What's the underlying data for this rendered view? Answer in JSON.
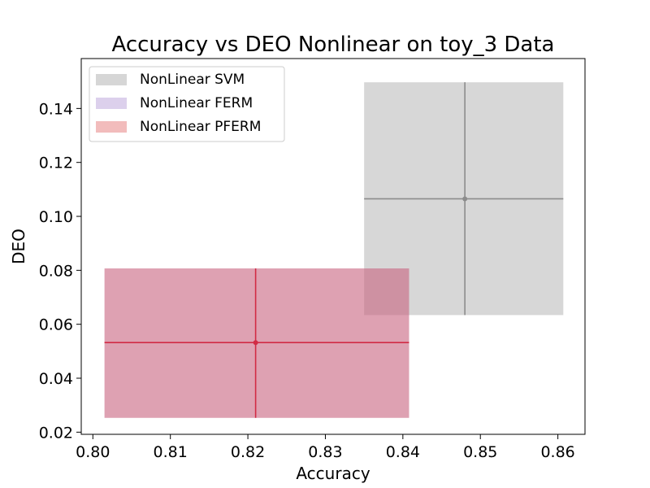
{
  "chart_data": {
    "type": "scatter",
    "title": "Accuracy vs DEO Nonlinear on toy_3 Data",
    "xlabel": "Accuracy",
    "ylabel": "DEO",
    "xlim": [
      0.7985,
      0.8635
    ],
    "ylim": [
      0.0192,
      0.1585
    ],
    "xticks": [
      "0.80",
      "0.81",
      "0.82",
      "0.83",
      "0.84",
      "0.85",
      "0.86"
    ],
    "yticks": [
      "0.02",
      "0.04",
      "0.06",
      "0.08",
      "0.10",
      "0.12",
      "0.14"
    ],
    "grid": false,
    "legend_position": "top-left",
    "series": [
      {
        "name": "NonLinear SVM",
        "legend_color": "#d6d6d6",
        "box_color": "#bdbdbd",
        "box_opacity": 0.6,
        "line_color": "#8c8c8c",
        "x": 0.848,
        "y": 0.1065,
        "x_min": 0.835,
        "x_max": 0.8607,
        "y_min": 0.0634,
        "y_max": 0.1497
      },
      {
        "name": "NonLinear FERM",
        "legend_color": "#dcd0ec",
        "box_color": "#c9b8e0",
        "box_opacity": 0.6,
        "line_color": "#7a5aa8",
        "x": null,
        "y": null,
        "x_min": null,
        "x_max": null,
        "y_min": null,
        "y_max": null
      },
      {
        "name": "NonLinear PFERM",
        "legend_color": "#f2bcbc",
        "box_color": "#c8627e",
        "box_opacity": 0.6,
        "line_color": "#d12b45",
        "x": 0.821,
        "y": 0.0532,
        "x_min": 0.8015,
        "x_max": 0.8408,
        "y_min": 0.0253,
        "y_max": 0.0807
      }
    ]
  }
}
